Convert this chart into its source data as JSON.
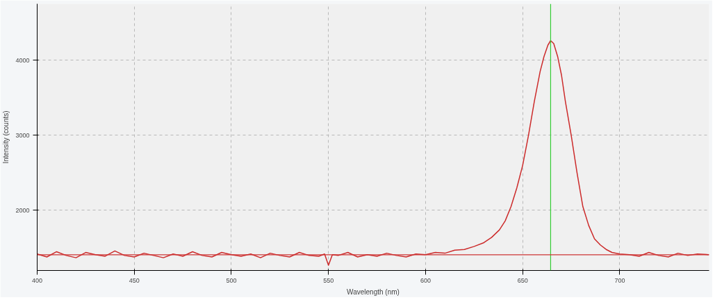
{
  "chart_data": {
    "type": "line",
    "xlabel": "Wavelength (nm)",
    "ylabel": "Intensity (counts)",
    "xlim": [
      400,
      746
    ],
    "ylim": [
      1200,
      4750
    ],
    "xticks": [
      400,
      450,
      500,
      550,
      600,
      650,
      700
    ],
    "yticks": [
      2000,
      3000,
      4000
    ],
    "grid": true,
    "marker": "none",
    "line_style": "solid",
    "x": [
      400,
      405,
      410,
      415,
      420,
      425,
      430,
      435,
      440,
      445,
      450,
      455,
      460,
      465,
      470,
      475,
      480,
      485,
      490,
      495,
      500,
      505,
      510,
      515,
      520,
      525,
      530,
      535,
      540,
      545,
      548,
      550,
      552,
      555,
      560,
      565,
      570,
      575,
      580,
      585,
      590,
      595,
      600,
      605,
      610,
      615,
      620,
      625,
      630,
      634,
      638,
      641,
      644,
      647,
      650,
      653,
      656,
      659,
      661,
      663,
      664.4,
      666,
      668,
      670,
      672,
      675,
      678,
      681,
      684,
      687,
      690,
      693,
      696,
      700,
      705,
      710,
      715,
      720,
      725,
      730,
      735,
      740,
      746
    ],
    "series": [
      {
        "color": "#cc2a2a",
        "values": [
          1420,
          1380,
          1450,
          1400,
          1370,
          1440,
          1410,
          1390,
          1460,
          1400,
          1380,
          1430,
          1400,
          1370,
          1420,
          1390,
          1450,
          1400,
          1380,
          1440,
          1410,
          1390,
          1420,
          1370,
          1430,
          1400,
          1380,
          1440,
          1400,
          1390,
          1420,
          1270,
          1410,
          1400,
          1440,
          1380,
          1410,
          1390,
          1430,
          1400,
          1380,
          1420,
          1410,
          1440,
          1430,
          1470,
          1480,
          1520,
          1570,
          1640,
          1740,
          1860,
          2050,
          2300,
          2600,
          3000,
          3450,
          3850,
          4050,
          4200,
          4260,
          4220,
          4050,
          3800,
          3450,
          3000,
          2500,
          2050,
          1800,
          1620,
          1540,
          1480,
          1440,
          1420,
          1410,
          1390,
          1440,
          1400,
          1380,
          1430,
          1400,
          1420,
          1410
        ]
      }
    ],
    "ref_lines": [
      {
        "axis": "x",
        "value": 664.4,
        "color": "#33cc33"
      },
      {
        "axis": "y",
        "value": 1410,
        "color": "#cc3333"
      }
    ]
  }
}
